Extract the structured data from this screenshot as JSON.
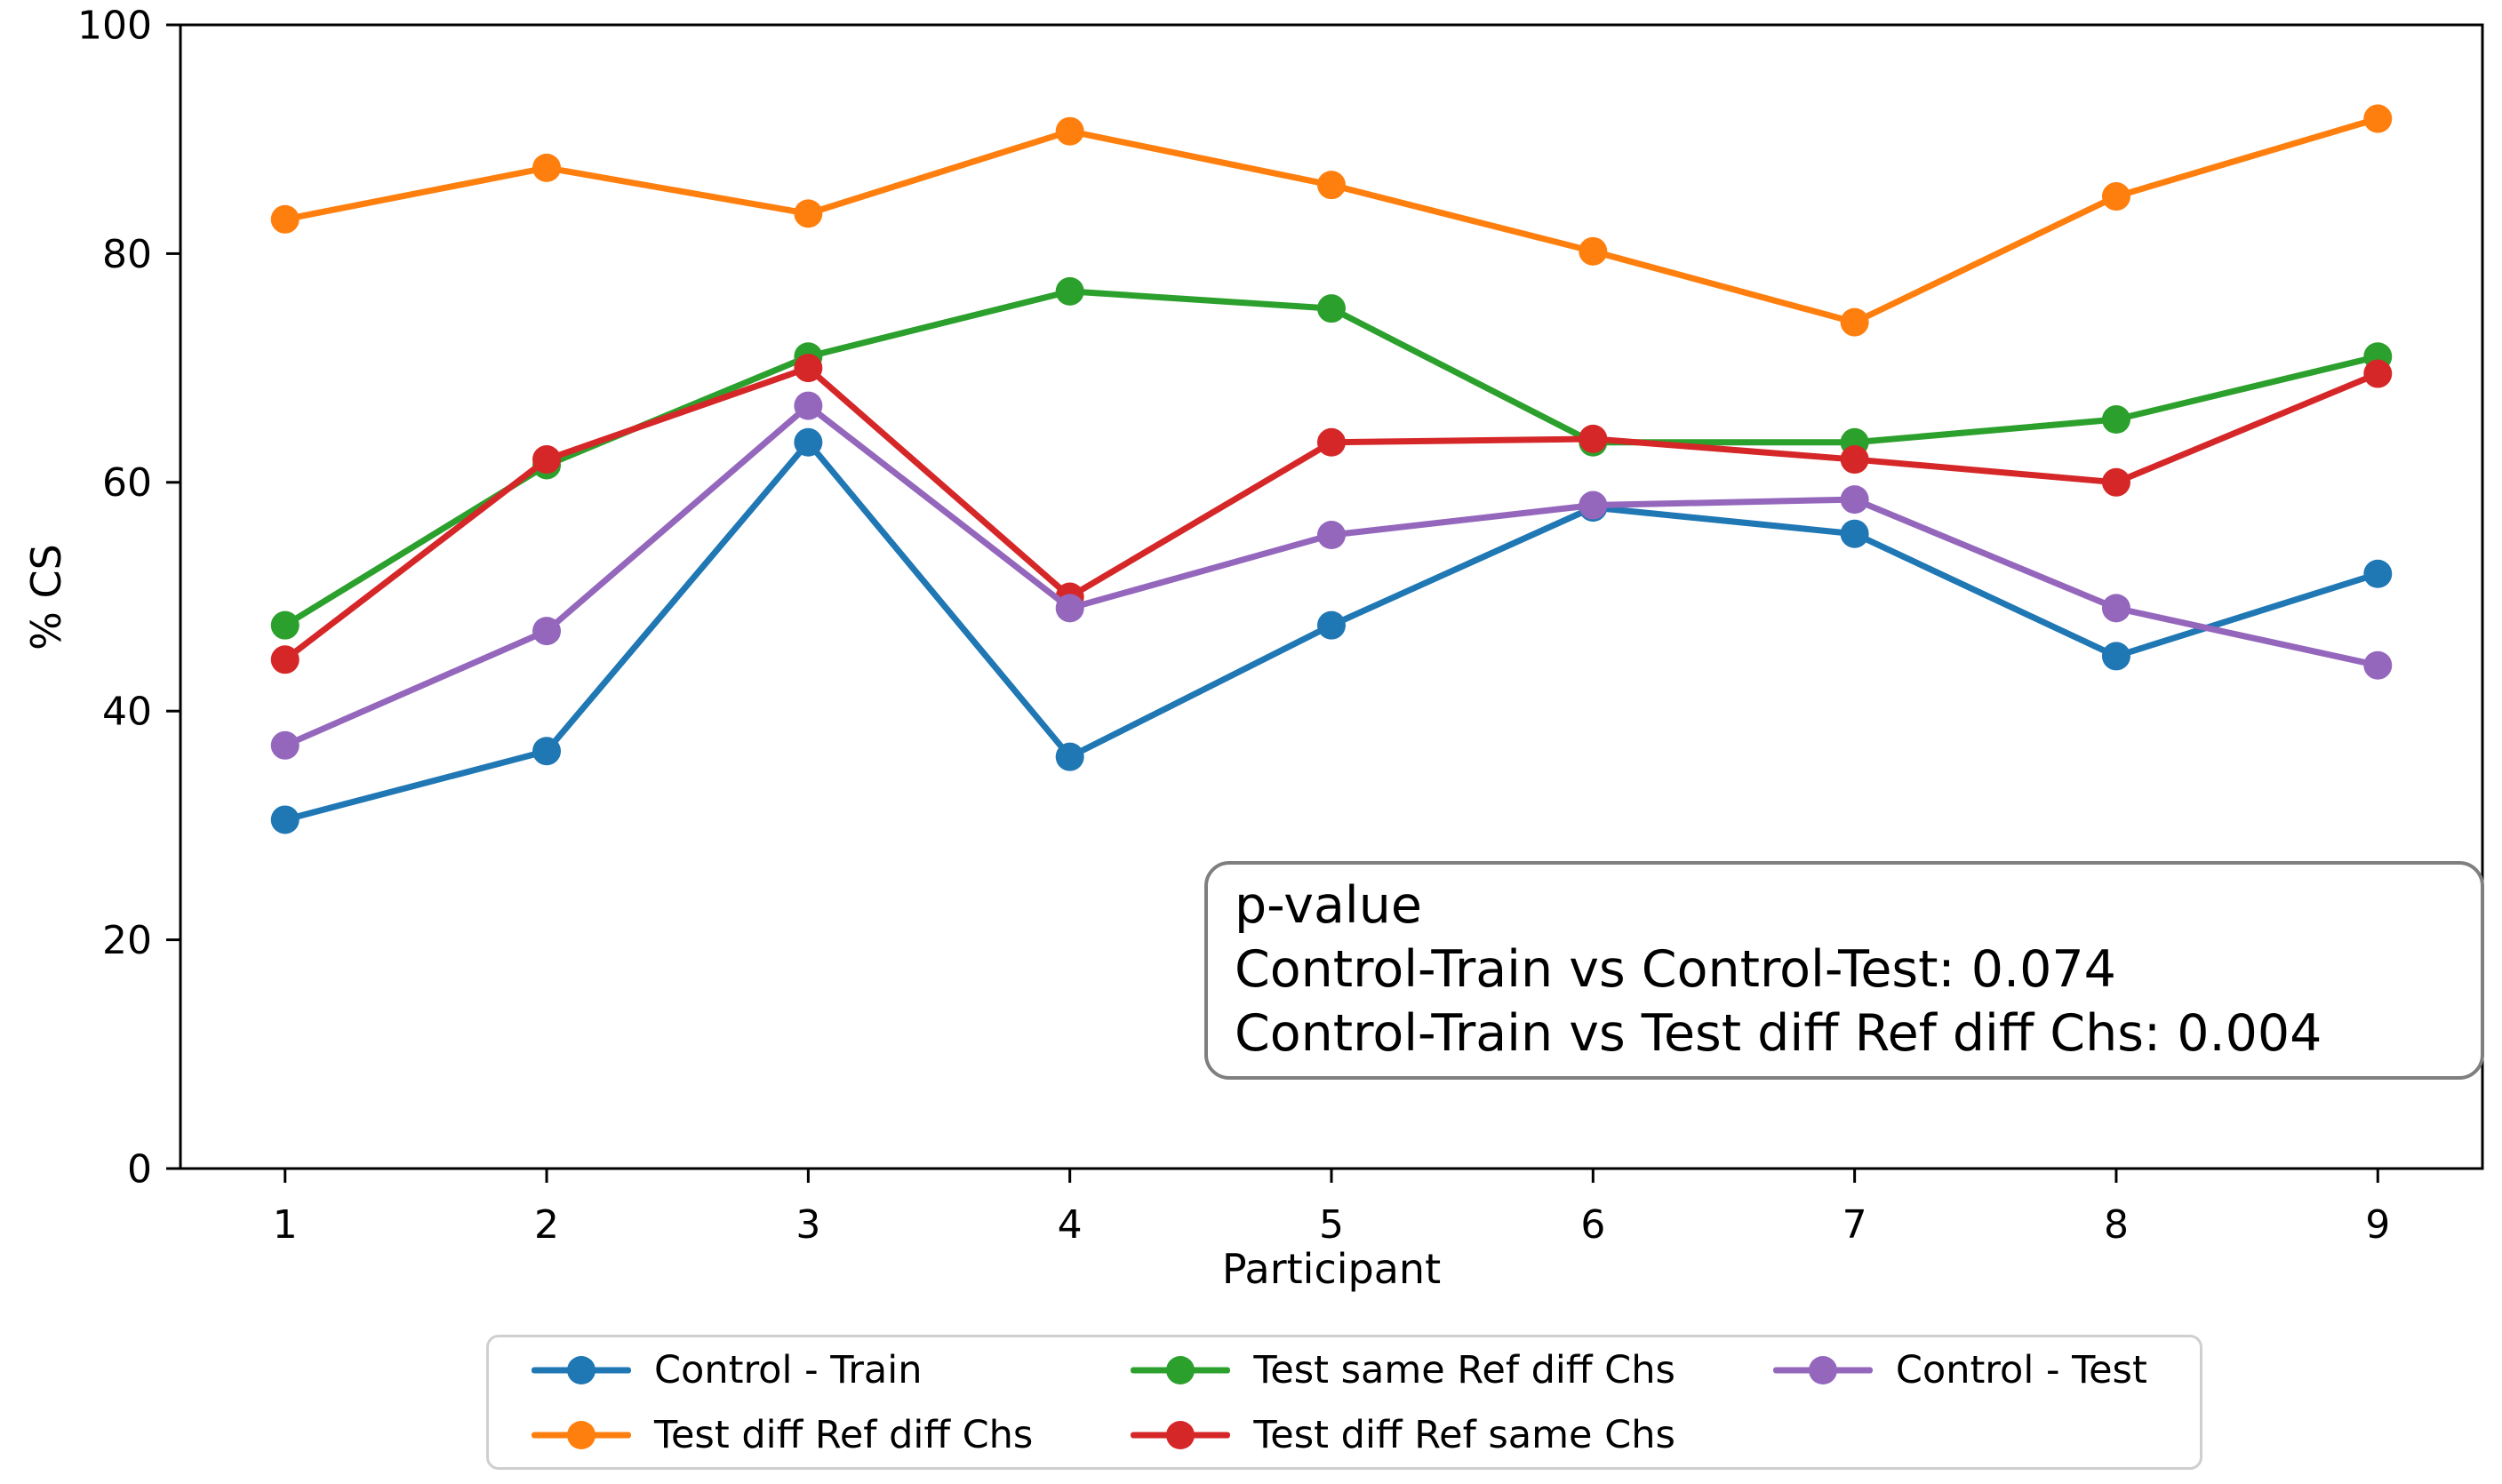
{
  "chart_data": {
    "type": "line",
    "title": "",
    "xlabel": "Participant",
    "ylabel": "% CS",
    "x": [
      1,
      2,
      3,
      4,
      5,
      6,
      7,
      8,
      9
    ],
    "xticks": [
      "1",
      "2",
      "3",
      "4",
      "5",
      "6",
      "7",
      "8",
      "9"
    ],
    "yticks": [
      "0",
      "20",
      "40",
      "60",
      "80",
      "100"
    ],
    "ylim": [
      0,
      100
    ],
    "grid": false,
    "series": [
      {
        "name": "Control - Train",
        "color": "#1f77b4",
        "values": [
          30.5,
          36.5,
          63.5,
          36.0,
          47.5,
          57.8,
          55.5,
          44.8,
          52.0
        ]
      },
      {
        "name": "Test diff Ref diff Chs",
        "color": "#ff7f0e",
        "values": [
          83.0,
          87.5,
          83.5,
          90.7,
          86.0,
          80.2,
          74.0,
          85.0,
          91.8
        ]
      },
      {
        "name": "Test same Ref diff Chs",
        "color": "#2ca02c",
        "values": [
          47.5,
          61.5,
          71.0,
          76.7,
          75.2,
          63.5,
          63.5,
          65.5,
          71.0
        ]
      },
      {
        "name": "Test diff Ref same Chs",
        "color": "#d62728",
        "values": [
          44.5,
          62.0,
          70.0,
          50.0,
          63.5,
          63.8,
          62.0,
          60.0,
          69.5
        ]
      },
      {
        "name": "Control - Test",
        "color": "#9467bd",
        "values": [
          37.0,
          47.0,
          66.7,
          49.0,
          55.4,
          58.0,
          58.5,
          49.0,
          44.0
        ]
      }
    ],
    "legend": {
      "position": "bottom",
      "ncol": 3,
      "rows": [
        [
          "Control - Train",
          "Test same Ref diff Chs",
          "Control - Test"
        ],
        [
          "Test diff Ref diff Chs",
          "Test diff Ref same Chs"
        ]
      ]
    },
    "annotation": {
      "lines": [
        "p-value",
        "Control-Train vs Control-Test: 0.074",
        "Control-Train vs Test diff Ref diff Chs: 0.004"
      ]
    }
  }
}
